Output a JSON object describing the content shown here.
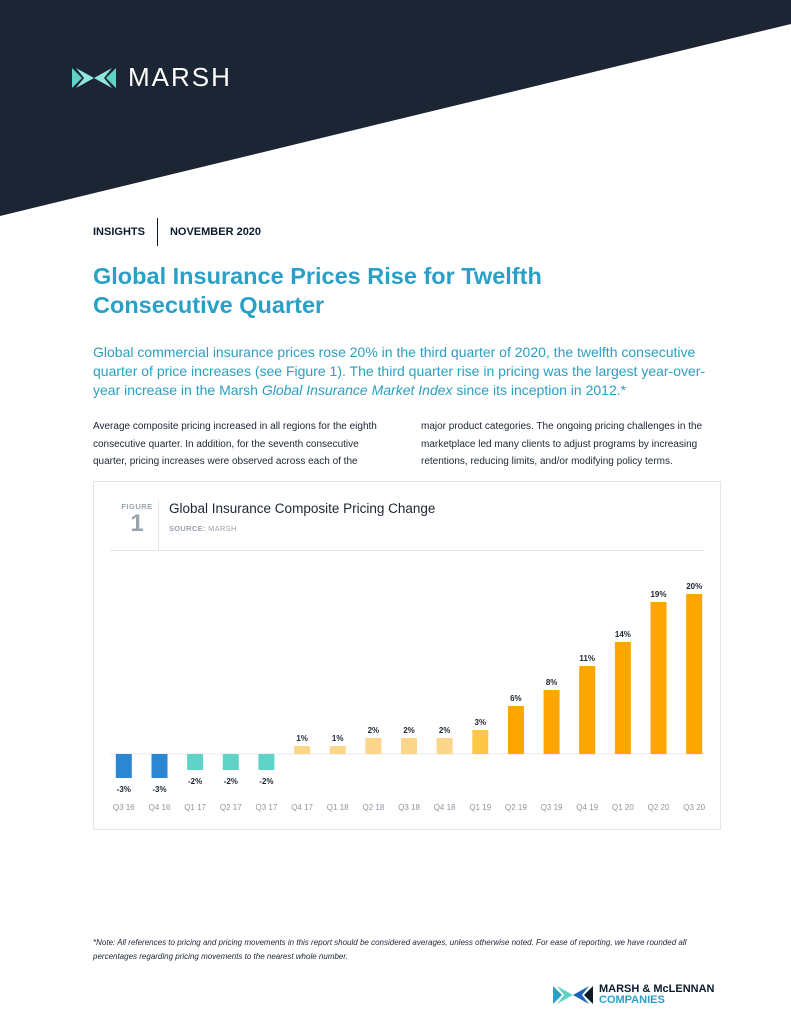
{
  "brand": {
    "logo_text": "MARSH",
    "footer_line1": "MARSH & McLENNAN",
    "footer_line2": "COMPANIES"
  },
  "meta": {
    "section": "INSIGHTS",
    "date": "NOVEMBER 2020"
  },
  "title": {
    "line1": "Global Insurance Prices Rise for Twelfth",
    "line2": "Consecutive Quarter"
  },
  "lead": {
    "before_italic": "Global commercial insurance prices rose 20% in the third quarter of 2020, the twelfth consecutive quarter of price increases (see Figure 1). The third quarter rise in pricing was the largest year-over-year increase in the Marsh ",
    "italic": "Global Insurance Market Index",
    "after_italic": " since its inception in 2012.*"
  },
  "body": {
    "col1": "Average composite pricing increased in all regions for the eighth consecutive quarter. In addition, for the seventh consecutive quarter, pricing increases were observed across each of the",
    "col2": "major product categories. The ongoing pricing challenges in the marketplace led many clients to adjust programs by increasing retentions, reducing limits, and/or modifying policy terms."
  },
  "figure": {
    "label": "FIGURE",
    "number": "1",
    "source_label": "SOURCE:",
    "source": "MARSH"
  },
  "chart_data": {
    "type": "bar",
    "title": "Global Insurance Composite Pricing Change",
    "categories": [
      "Q3 16",
      "Q4 16",
      "Q1 17",
      "Q2 17",
      "Q3 17",
      "Q4 17",
      "Q1 18",
      "Q2 18",
      "Q3 18",
      "Q4 18",
      "Q1 19",
      "Q2 19",
      "Q3 19",
      "Q4 19",
      "Q1 20",
      "Q2 20",
      "Q3 20"
    ],
    "values": [
      -3,
      -3,
      -2,
      -2,
      -2,
      1,
      1,
      2,
      2,
      2,
      3,
      6,
      8,
      11,
      14,
      19,
      20
    ],
    "labels": [
      "-3%",
      "-3%",
      "-2%",
      "-2%",
      "-2%",
      "1%",
      "1%",
      "2%",
      "2%",
      "2%",
      "3%",
      "6%",
      "8%",
      "11%",
      "14%",
      "19%",
      "20%"
    ],
    "colors": [
      "#2b87d1",
      "#2b87d1",
      "#5fd3c6",
      "#5fd3c6",
      "#5fd3c6",
      "#fdd68b",
      "#fdd68b",
      "#fdd68b",
      "#fdd68b",
      "#fdd68b",
      "#fdc745",
      "#fda500",
      "#fda500",
      "#fda500",
      "#fda500",
      "#fda500",
      "#fda500"
    ],
    "ylim": [
      -3,
      20
    ],
    "grid": false,
    "legend": "none"
  },
  "note": "*Note: All references to pricing and pricing movements in this report should be considered averages, unless otherwise noted. For ease of reporting, we have rounded all percentages regarding pricing movements to the nearest whole number.",
  "colors": {
    "navy": "#1c2533",
    "accent_blue": "#2aa0c6"
  }
}
